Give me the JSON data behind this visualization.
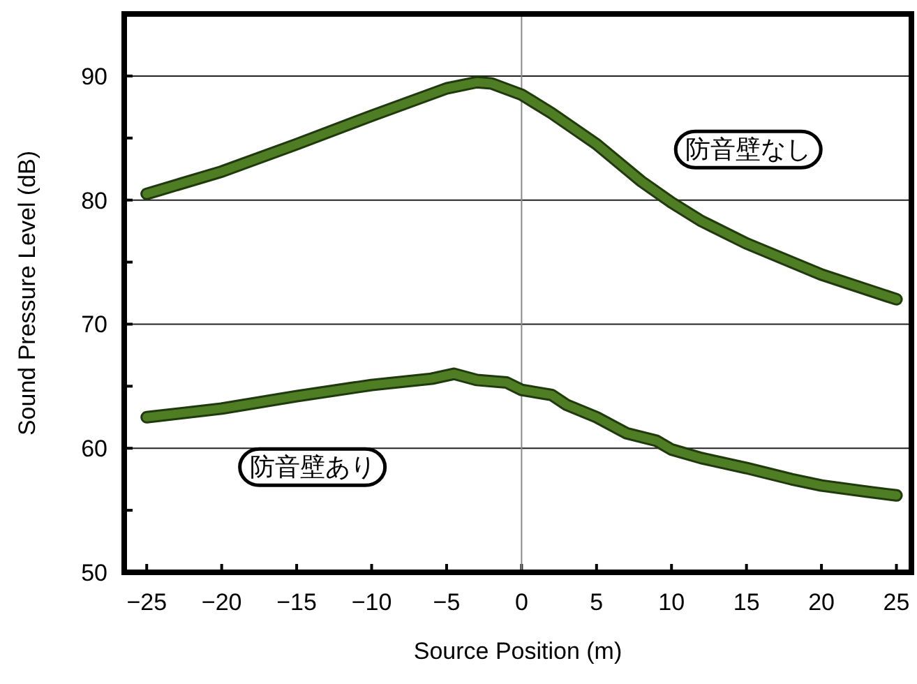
{
  "chart_data": {
    "type": "line",
    "xlabel": "Source Position (m)",
    "ylabel": "Sound Pressure Level (dB)",
    "xlim": [
      -26.5,
      26
    ],
    "ylim": [
      50,
      95
    ],
    "xticks": [
      -25,
      -20,
      -15,
      -10,
      -5,
      0,
      5,
      10,
      15,
      20,
      25
    ],
    "yticks": [
      50,
      {
        "value": 55,
        "label": null
      },
      60,
      {
        "value": 65,
        "label": null
      },
      70,
      {
        "value": 75,
        "label": null
      },
      80,
      {
        "value": 85,
        "label": null
      },
      90
    ],
    "grid": "y",
    "marker": "none",
    "line_style": "solid",
    "ref_lines": [
      {
        "axis": "x",
        "value": 0,
        "color": "#8a8a8a"
      }
    ],
    "series": [
      {
        "name": "防音壁なし",
        "color": "#4f7d23",
        "x": [
          -25,
          -20,
          -15,
          -10,
          -5,
          -3,
          -2,
          0,
          2,
          5,
          8,
          10,
          12,
          15,
          20,
          25
        ],
        "values": [
          80.5,
          82.3,
          84.5,
          86.8,
          89.0,
          89.5,
          89.4,
          88.5,
          87.0,
          84.5,
          81.5,
          79.8,
          78.3,
          76.5,
          74.0,
          72.0
        ]
      },
      {
        "name": "防音壁あり",
        "color": "#4f7d23",
        "x": [
          -25,
          -20,
          -15,
          -10,
          -6,
          -4.5,
          -3,
          -1,
          0,
          2,
          3,
          5,
          7,
          9,
          10,
          12,
          15,
          18,
          20,
          23,
          25
        ],
        "values": [
          62.5,
          63.2,
          64.2,
          65.1,
          65.6,
          66.0,
          65.5,
          65.3,
          64.7,
          64.3,
          63.5,
          62.5,
          61.2,
          60.6,
          59.9,
          59.2,
          58.4,
          57.5,
          57.0,
          56.5,
          56.2
        ]
      }
    ]
  }
}
